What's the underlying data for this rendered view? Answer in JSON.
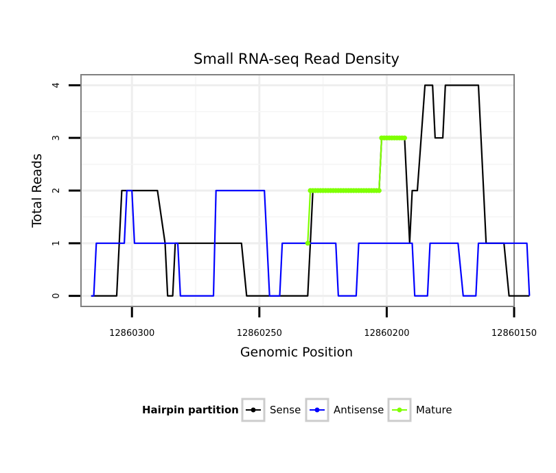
{
  "chart_data": {
    "type": "line",
    "title": "Small RNA-seq Read Density",
    "xlabel": "Genomic Position",
    "ylabel": "Total Reads",
    "xlim_reversed": [
      12860320,
      12860150
    ],
    "ylim": [
      -0.2,
      4.2
    ],
    "x_ticks": [
      12860300,
      12860250,
      12860200,
      12860150
    ],
    "x_tick_labels": [
      "12860300",
      "12860250",
      "12860200",
      "12860150"
    ],
    "y_ticks": [
      0,
      1,
      2,
      3,
      4
    ],
    "y_tick_labels": [
      "0",
      "1",
      "2",
      "3",
      "4"
    ],
    "grid": true,
    "legend": {
      "title": "Hairpin partition",
      "position": "bottom",
      "entries": [
        "Sense",
        "Antisense",
        "Mature"
      ]
    },
    "series": [
      {
        "name": "Sense",
        "color": "#000000",
        "points": [
          [
            12860316,
            0
          ],
          [
            12860306,
            0
          ],
          [
            12860304,
            2
          ],
          [
            12860290,
            2
          ],
          [
            12860287,
            1
          ],
          [
            12860286,
            0
          ],
          [
            12860284,
            0
          ],
          [
            12860283,
            1
          ],
          [
            12860257,
            1
          ],
          [
            12860255,
            0
          ],
          [
            12860231,
            0
          ],
          [
            12860230,
            1
          ],
          [
            12860229,
            2
          ],
          [
            12860203,
            2
          ],
          [
            12860202,
            3
          ],
          [
            12860193,
            3
          ],
          [
            12860191,
            1
          ],
          [
            12860190,
            2
          ],
          [
            12860188,
            2
          ],
          [
            12860185,
            4
          ],
          [
            12860182,
            4
          ],
          [
            12860181,
            3
          ],
          [
            12860178,
            3
          ],
          [
            12860177,
            4
          ],
          [
            12860164,
            4
          ],
          [
            12860162,
            2
          ],
          [
            12860161,
            1
          ],
          [
            12860154,
            1
          ],
          [
            12860152,
            0
          ],
          [
            12860144,
            0
          ]
        ]
      },
      {
        "name": "Antisense",
        "color": "#0000ff",
        "points": [
          [
            12860316,
            0
          ],
          [
            12860315,
            0
          ],
          [
            12860314,
            1
          ],
          [
            12860303,
            1
          ],
          [
            12860302,
            2
          ],
          [
            12860300,
            2
          ],
          [
            12860299,
            1
          ],
          [
            12860282,
            1
          ],
          [
            12860281,
            0
          ],
          [
            12860268,
            0
          ],
          [
            12860267,
            2
          ],
          [
            12860248,
            2
          ],
          [
            12860246,
            0
          ],
          [
            12860242,
            0
          ],
          [
            12860241,
            1
          ],
          [
            12860220,
            1
          ],
          [
            12860219,
            0
          ],
          [
            12860212,
            0
          ],
          [
            12860211,
            1
          ],
          [
            12860190,
            1
          ],
          [
            12860189,
            0
          ],
          [
            12860184,
            0
          ],
          [
            12860183,
            1
          ],
          [
            12860172,
            1
          ],
          [
            12860170,
            0
          ],
          [
            12860165,
            0
          ],
          [
            12860164,
            1
          ],
          [
            12860145,
            1
          ],
          [
            12860144,
            0
          ]
        ]
      },
      {
        "name": "Mature",
        "color": "#7fff00",
        "points": [
          [
            12860231,
            1
          ],
          [
            12860230,
            2
          ],
          [
            12860229,
            2
          ],
          [
            12860228,
            2
          ],
          [
            12860227,
            2
          ],
          [
            12860226,
            2
          ],
          [
            12860225,
            2
          ],
          [
            12860224,
            2
          ],
          [
            12860223,
            2
          ],
          [
            12860222,
            2
          ],
          [
            12860221,
            2
          ],
          [
            12860220,
            2
          ],
          [
            12860219,
            2
          ],
          [
            12860218,
            2
          ],
          [
            12860217,
            2
          ],
          [
            12860216,
            2
          ],
          [
            12860215,
            2
          ],
          [
            12860214,
            2
          ],
          [
            12860213,
            2
          ],
          [
            12860212,
            2
          ],
          [
            12860211,
            2
          ],
          [
            12860210,
            2
          ],
          [
            12860209,
            2
          ],
          [
            12860208,
            2
          ],
          [
            12860207,
            2
          ],
          [
            12860206,
            2
          ],
          [
            12860205,
            2
          ],
          [
            12860204,
            2
          ],
          [
            12860203,
            2
          ],
          [
            12860202,
            3
          ],
          [
            12860201,
            3
          ],
          [
            12860200,
            3
          ],
          [
            12860199,
            3
          ],
          [
            12860198,
            3
          ],
          [
            12860197,
            3
          ],
          [
            12860196,
            3
          ],
          [
            12860195,
            3
          ],
          [
            12860194,
            3
          ],
          [
            12860193,
            3
          ]
        ]
      }
    ]
  }
}
